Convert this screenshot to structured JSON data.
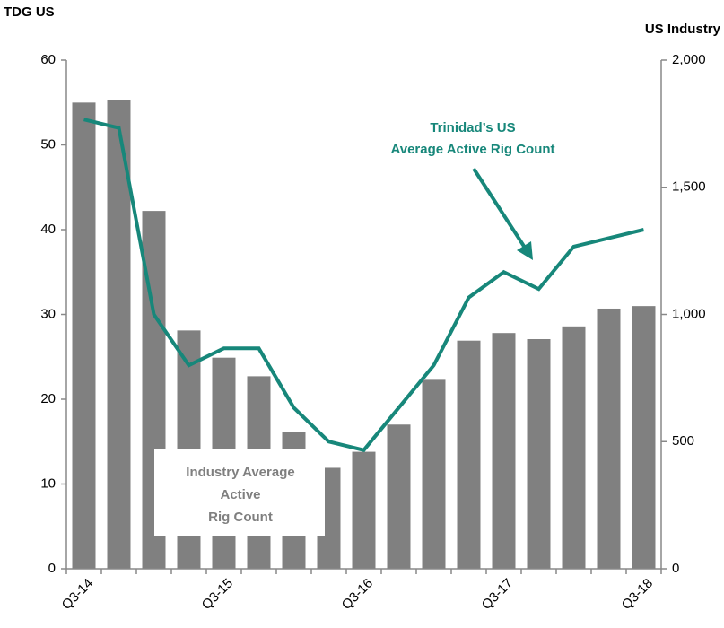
{
  "chart_data": {
    "type": "bar-line",
    "y_label": "TDG US",
    "y2_label": "US Industry",
    "categories": [
      "Q3-14",
      null,
      null,
      null,
      "Q3-15",
      null,
      null,
      null,
      "Q3-16",
      null,
      null,
      null,
      "Q3-17",
      null,
      null,
      null,
      "Q3-18"
    ],
    "series": [
      {
        "name": "Industry Average Active Rig Count",
        "type": "bar",
        "axis": "y2",
        "color": "#808080",
        "values": [
          1833,
          1843,
          1407,
          937,
          830,
          757,
          537,
          397,
          460,
          567,
          743,
          897,
          927,
          903,
          953,
          1023,
          1033
        ]
      },
      {
        "name": "Trinidad's US Average Active Rig Count",
        "type": "line",
        "axis": "y",
        "color": "#17877a",
        "values": [
          53,
          52,
          30,
          24,
          26,
          26,
          19,
          15,
          14,
          19,
          24,
          32,
          35,
          33,
          38,
          39,
          40
        ]
      }
    ],
    "annotations": {
      "line_label": [
        "Trinidad’s US",
        "Average Active Rig Count"
      ],
      "bar_label": [
        "Industry Average",
        "Active",
        "Rig Count"
      ]
    },
    "ylim": [
      0,
      60
    ],
    "yticks": [
      0,
      10,
      20,
      30,
      40,
      50,
      60
    ],
    "y2lim": [
      0,
      2000
    ],
    "y2ticks": [
      0,
      500,
      {
        "value": 1000,
        "label": "1,000"
      },
      {
        "value": 1500,
        "label": "1,500"
      },
      {
        "value": 2000,
        "label": "2,000"
      }
    ]
  }
}
